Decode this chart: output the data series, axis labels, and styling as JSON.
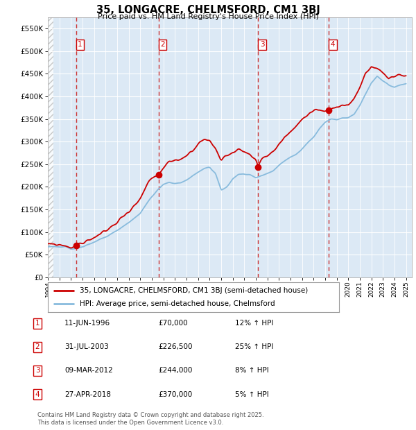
{
  "title": "35, LONGACRE, CHELMSFORD, CM1 3BJ",
  "subtitle": "Price paid vs. HM Land Registry's House Price Index (HPI)",
  "ylim": [
    0,
    575000
  ],
  "yticks": [
    0,
    50000,
    100000,
    150000,
    200000,
    250000,
    300000,
    350000,
    400000,
    450000,
    500000,
    550000
  ],
  "xlim_start": 1994.0,
  "xlim_end": 2025.5,
  "background_color": "#ffffff",
  "plot_bg_color": "#dce9f5",
  "grid_color": "#ffffff",
  "red_line_color": "#cc0000",
  "blue_line_color": "#88bbdd",
  "dashed_line_color": "#cc3333",
  "sale_points": [
    {
      "year": 1996.44,
      "price": 70000,
      "label": "1"
    },
    {
      "year": 2003.58,
      "price": 226500,
      "label": "2"
    },
    {
      "year": 2012.19,
      "price": 244000,
      "label": "3"
    },
    {
      "year": 2018.32,
      "price": 370000,
      "label": "4"
    }
  ],
  "legend_entries": [
    {
      "label": "35, LONGACRE, CHELMSFORD, CM1 3BJ (semi-detached house)",
      "color": "#cc0000"
    },
    {
      "label": "HPI: Average price, semi-detached house, Chelmsford",
      "color": "#88bbdd"
    }
  ],
  "table_rows": [
    {
      "num": "1",
      "date": "11-JUN-1996",
      "price": "£70,000",
      "hpi": "12% ↑ HPI"
    },
    {
      "num": "2",
      "date": "31-JUL-2003",
      "price": "£226,500",
      "hpi": "25% ↑ HPI"
    },
    {
      "num": "3",
      "date": "09-MAR-2012",
      "price": "£244,000",
      "hpi": "8% ↑ HPI"
    },
    {
      "num": "4",
      "date": "27-APR-2018",
      "price": "£370,000",
      "hpi": "5% ↑ HPI"
    }
  ],
  "footer": "Contains HM Land Registry data © Crown copyright and database right 2025.\nThis data is licensed under the Open Government Licence v3.0."
}
